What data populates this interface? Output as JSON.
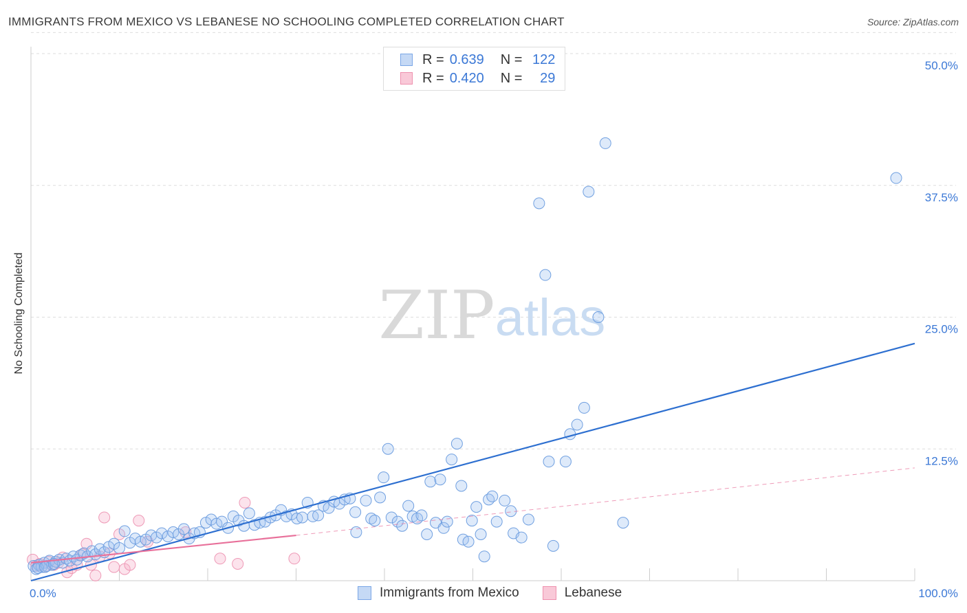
{
  "title": "IMMIGRANTS FROM MEXICO VS LEBANESE NO SCHOOLING COMPLETED CORRELATION CHART",
  "source": "Source: ZipAtlas.com",
  "watermark": {
    "zip": "ZIP",
    "atlas": "atlas"
  },
  "legend": {
    "r_label": "R =",
    "n_label": "N =",
    "rows": [
      {
        "name": "Immigrants from Mexico",
        "r": "0.639",
        "n": "122",
        "fill": "#c5d9f5",
        "stroke": "#7aa6e6"
      },
      {
        "name": "Lebanese",
        "r": "0.420",
        "n": "29",
        "fill": "#f9c9d8",
        "stroke": "#ee90ae"
      }
    ]
  },
  "colors": {
    "blue_point_fill": "rgba(160,195,240,0.35)",
    "blue_point_stroke": "#6f9fe0",
    "blue_line": "#2d6fd0",
    "pink_point_fill": "rgba(245,175,200,0.35)",
    "pink_point_stroke": "#ee99b6",
    "pink_line": "#e8709a",
    "grid": "#dddddd",
    "tick_label": "#3b78d6"
  },
  "chart_data": {
    "type": "scatter",
    "title": "IMMIGRANTS FROM MEXICO VS LEBANESE NO SCHOOLING COMPLETED CORRELATION CHART",
    "xlabel": "",
    "ylabel": "No Schooling Completed",
    "xlim": [
      0,
      100
    ],
    "ylim": [
      0,
      50
    ],
    "x_tick_labels": [
      "0.0%",
      "100.0%"
    ],
    "y_ticks": [
      12.5,
      25,
      37.5,
      50
    ],
    "y_tick_labels": [
      "12.5%",
      "25.0%",
      "37.5%",
      "50.0%"
    ],
    "series": [
      {
        "name": "Immigrants from Mexico",
        "trend": {
          "x": [
            0,
            100
          ],
          "y": [
            0.0,
            22.5
          ]
        },
        "points": [
          [
            0.3,
            1.4
          ],
          [
            0.6,
            1.1
          ],
          [
            0.9,
            1.5
          ],
          [
            1.2,
            1.3
          ],
          [
            1.5,
            1.7
          ],
          [
            1.8,
            1.4
          ],
          [
            2.1,
            1.9
          ],
          [
            2.4,
            1.5
          ],
          [
            2.8,
            1.8
          ],
          [
            3.2,
            2.0
          ],
          [
            3.6,
            1.7
          ],
          [
            4.0,
            2.1
          ],
          [
            4.4,
            1.9
          ],
          [
            4.8,
            2.3
          ],
          [
            5.2,
            2.0
          ],
          [
            5.6,
            2.4
          ],
          [
            6.0,
            2.6
          ],
          [
            6.4,
            2.3
          ],
          [
            6.9,
            2.8
          ],
          [
            7.3,
            2.5
          ],
          [
            7.8,
            3.0
          ],
          [
            8.3,
            2.7
          ],
          [
            8.8,
            3.2
          ],
          [
            9.4,
            3.5
          ],
          [
            10.0,
            3.1
          ],
          [
            10.6,
            4.7
          ],
          [
            11.2,
            3.6
          ],
          [
            11.8,
            4.0
          ],
          [
            12.4,
            3.7
          ],
          [
            13.0,
            3.9
          ],
          [
            13.6,
            4.3
          ],
          [
            14.2,
            4.1
          ],
          [
            14.8,
            4.5
          ],
          [
            15.5,
            4.2
          ],
          [
            16.1,
            4.6
          ],
          [
            16.7,
            4.4
          ],
          [
            17.3,
            4.9
          ],
          [
            17.9,
            4.0
          ],
          [
            18.5,
            4.5
          ],
          [
            19.1,
            4.6
          ],
          [
            19.8,
            5.5
          ],
          [
            20.4,
            5.8
          ],
          [
            21.0,
            5.4
          ],
          [
            21.6,
            5.6
          ],
          [
            22.3,
            5.0
          ],
          [
            22.9,
            6.1
          ],
          [
            23.5,
            5.7
          ],
          [
            24.1,
            5.2
          ],
          [
            24.7,
            6.4
          ],
          [
            25.3,
            5.3
          ],
          [
            25.9,
            5.5
          ],
          [
            26.5,
            5.6
          ],
          [
            27.1,
            6.0
          ],
          [
            27.7,
            6.2
          ],
          [
            28.3,
            6.7
          ],
          [
            28.9,
            6.1
          ],
          [
            29.5,
            6.3
          ],
          [
            30.1,
            5.9
          ],
          [
            30.7,
            6.0
          ],
          [
            31.3,
            7.4
          ],
          [
            31.9,
            6.1
          ],
          [
            32.5,
            6.2
          ],
          [
            33.1,
            7.1
          ],
          [
            33.7,
            6.9
          ],
          [
            34.3,
            7.5
          ],
          [
            34.9,
            7.3
          ],
          [
            35.5,
            7.7
          ],
          [
            36.1,
            7.8
          ],
          [
            36.7,
            6.5
          ],
          [
            36.8,
            4.6
          ],
          [
            37.9,
            7.6
          ],
          [
            38.5,
            5.9
          ],
          [
            38.9,
            5.7
          ],
          [
            39.5,
            7.9
          ],
          [
            39.9,
            9.8
          ],
          [
            40.4,
            12.5
          ],
          [
            40.8,
            6.0
          ],
          [
            41.5,
            5.6
          ],
          [
            42.0,
            5.2
          ],
          [
            42.7,
            7.1
          ],
          [
            43.2,
            6.1
          ],
          [
            43.7,
            5.9
          ],
          [
            44.2,
            6.2
          ],
          [
            44.8,
            4.4
          ],
          [
            45.2,
            9.4
          ],
          [
            45.8,
            5.5
          ],
          [
            46.3,
            9.6
          ],
          [
            46.7,
            5.0
          ],
          [
            47.1,
            5.6
          ],
          [
            47.6,
            11.5
          ],
          [
            48.2,
            13.0
          ],
          [
            48.7,
            9.0
          ],
          [
            48.9,
            3.9
          ],
          [
            49.5,
            3.7
          ],
          [
            49.9,
            5.7
          ],
          [
            50.4,
            7.0
          ],
          [
            50.9,
            4.4
          ],
          [
            51.3,
            2.3
          ],
          [
            51.8,
            7.7
          ],
          [
            52.2,
            8.0
          ],
          [
            52.7,
            5.6
          ],
          [
            53.6,
            7.6
          ],
          [
            54.3,
            6.6
          ],
          [
            54.6,
            4.5
          ],
          [
            55.5,
            4.1
          ],
          [
            56.3,
            5.8
          ],
          [
            57.5,
            35.8
          ],
          [
            58.2,
            29.0
          ],
          [
            58.6,
            11.3
          ],
          [
            59.1,
            3.3
          ],
          [
            60.5,
            11.3
          ],
          [
            61.0,
            13.9
          ],
          [
            61.8,
            14.8
          ],
          [
            62.6,
            16.4
          ],
          [
            63.1,
            36.9
          ],
          [
            64.2,
            25.0
          ],
          [
            65.0,
            41.5
          ],
          [
            67.0,
            5.5
          ],
          [
            97.9,
            38.2
          ],
          [
            0.8,
            1.2
          ],
          [
            1.6,
            1.3
          ],
          [
            2.6,
            1.6
          ]
        ]
      },
      {
        "name": "Lebanese",
        "trend": {
          "x": [
            0,
            30
          ],
          "y": [
            1.7,
            4.3
          ]
        },
        "trend_extension": {
          "x": [
            30,
            100
          ],
          "y": [
            4.3,
            10.7
          ]
        },
        "points": [
          [
            0.2,
            2.0
          ],
          [
            0.6,
            1.4
          ],
          [
            1.0,
            1.6
          ],
          [
            1.5,
            1.3
          ],
          [
            2.0,
            1.8
          ],
          [
            2.6,
            1.5
          ],
          [
            3.1,
            1.7
          ],
          [
            3.6,
            2.2
          ],
          [
            4.1,
            0.8
          ],
          [
            4.6,
            1.2
          ],
          [
            5.2,
            1.5
          ],
          [
            5.8,
            2.5
          ],
          [
            6.3,
            3.5
          ],
          [
            6.8,
            1.5
          ],
          [
            7.3,
            0.5
          ],
          [
            7.8,
            2.3
          ],
          [
            8.3,
            6.0
          ],
          [
            8.9,
            2.6
          ],
          [
            9.4,
            1.3
          ],
          [
            10.0,
            4.4
          ],
          [
            10.6,
            1.1
          ],
          [
            11.2,
            1.5
          ],
          [
            12.2,
            5.7
          ],
          [
            13.2,
            3.7
          ],
          [
            17.5,
            4.6
          ],
          [
            21.4,
            2.1
          ],
          [
            23.4,
            1.6
          ],
          [
            24.2,
            7.4
          ],
          [
            29.8,
            2.1
          ]
        ]
      }
    ]
  }
}
